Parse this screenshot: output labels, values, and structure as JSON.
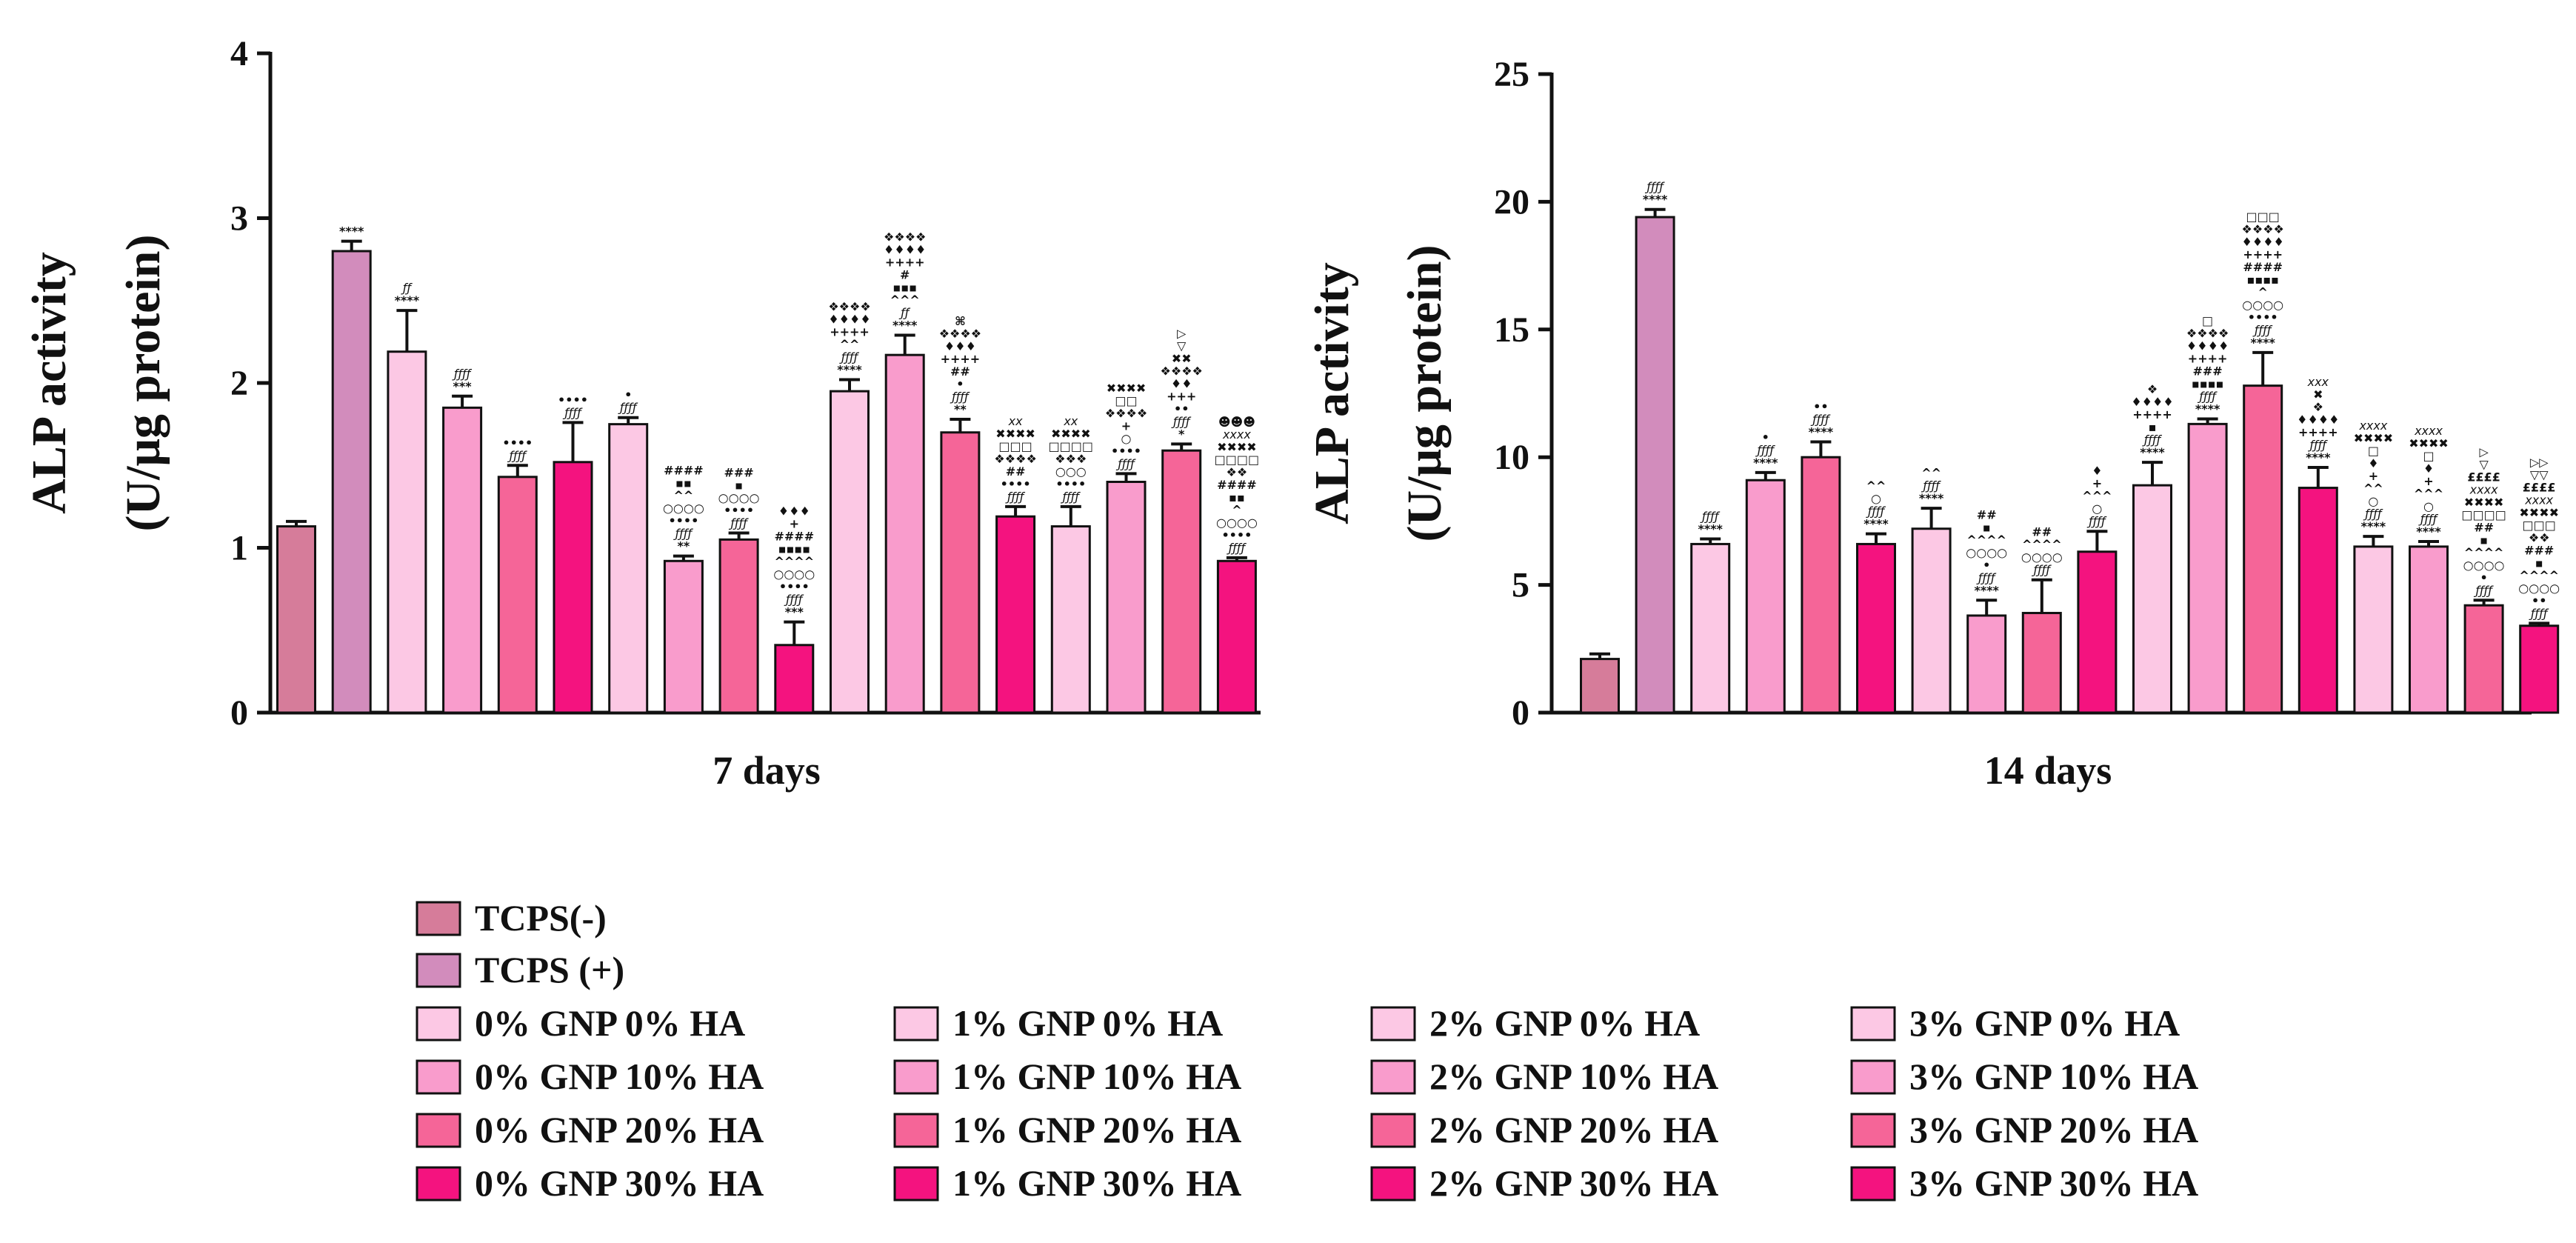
{
  "colors": {
    "tcps_neg": "#d67c9a",
    "tcps_pos": "#d28cbc",
    "ha0": "#fcc8e4",
    "ha10": "#f99ccc",
    "ha20": "#f56598",
    "ha30": "#f4137f"
  },
  "legend": {
    "entries": [
      {
        "label": "TCPS(-)",
        "color": "#d67c9a"
      },
      {
        "label": "TCPS (+)",
        "color": "#d28cbc"
      },
      {
        "label": "0% GNP 0% HA",
        "color": "#fcc8e4"
      },
      {
        "label": "0% GNP 10% HA",
        "color": "#f99ccc"
      },
      {
        "label": "0% GNP 20% HA",
        "color": "#f56598"
      },
      {
        "label": "0% GNP 30% HA",
        "color": "#f4137f"
      },
      {
        "label": "1% GNP 0% HA",
        "color": "#fcc8e4"
      },
      {
        "label": "1% GNP 10% HA",
        "color": "#f99ccc"
      },
      {
        "label": "1% GNP 20% HA",
        "color": "#f56598"
      },
      {
        "label": "1% GNP 30% HA",
        "color": "#f4137f"
      },
      {
        "label": "2% GNP 0% HA",
        "color": "#fcc8e4"
      },
      {
        "label": "2% GNP 10% HA",
        "color": "#f99ccc"
      },
      {
        "label": "2% GNP 20% HA",
        "color": "#f56598"
      },
      {
        "label": "2% GNP 30% HA",
        "color": "#f4137f"
      },
      {
        "label": "3% GNP 0% HA",
        "color": "#fcc8e4"
      },
      {
        "label": "3% GNP 10% HA",
        "color": "#f99ccc"
      },
      {
        "label": "3% GNP 20% HA",
        "color": "#f56598"
      },
      {
        "label": "3% GNP 30% HA",
        "color": "#f4137f"
      }
    ]
  },
  "chart_data": [
    {
      "type": "bar",
      "title": "",
      "xlabel": "7 days",
      "ylabel_line1": "ALP activity",
      "ylabel_line2": "(U/μg protein)",
      "ylim": [
        0,
        4
      ],
      "yticks": [
        "0",
        "1",
        "2",
        "3",
        "4"
      ],
      "categories": [
        "TCPS(-)",
        "TCPS (+)",
        "0% GNP 0% HA",
        "0% GNP 10% HA",
        "0% GNP 20% HA",
        "0% GNP 30% HA",
        "1% GNP 0% HA",
        "1% GNP 10% HA",
        "1% GNP 20% HA",
        "1% GNP 30% HA",
        "2% GNP 0% HA",
        "2% GNP 10% HA",
        "2% GNP 20% HA",
        "2% GNP 30% HA",
        "3% GNP 0% HA",
        "3% GNP 10% HA",
        "3% GNP 20% HA",
        "3% GNP 30% HA"
      ],
      "values": [
        1.13,
        2.8,
        2.19,
        1.85,
        1.43,
        1.52,
        1.75,
        0.92,
        1.05,
        0.41,
        1.95,
        2.17,
        1.7,
        1.19,
        1.13,
        1.4,
        1.59,
        0.92
      ],
      "errors": [
        0.03,
        0.06,
        0.25,
        0.07,
        0.07,
        0.24,
        0.04,
        0.03,
        0.04,
        0.14,
        0.07,
        0.12,
        0.08,
        0.06,
        0.12,
        0.05,
        0.04,
        0.02
      ],
      "colors": [
        "#d67c9a",
        "#d28cbc",
        "#fcc8e4",
        "#f99ccc",
        "#f56598",
        "#f4137f",
        "#fcc8e4",
        "#f99ccc",
        "#f56598",
        "#f4137f",
        "#fcc8e4",
        "#f99ccc",
        "#f56598",
        "#f4137f",
        "#fcc8e4",
        "#f99ccc",
        "#f56598",
        "#f4137f"
      ],
      "annotations": [
        [],
        [
          "****"
        ],
        [
          "ƒƒ",
          "****"
        ],
        [
          "ƒƒƒƒ",
          "***"
        ],
        [
          "••••",
          "ƒƒƒƒ"
        ],
        [
          "••••",
          "ƒƒƒƒ"
        ],
        [
          "•",
          "ƒƒƒƒ"
        ],
        [
          "####",
          "▪▪",
          "^^",
          "○○○○",
          "••••",
          "ƒƒƒƒ",
          "**"
        ],
        [
          "###",
          "▪",
          "○○○○",
          "••••",
          "ƒƒƒƒ"
        ],
        [
          "♦♦♦",
          "+",
          "####",
          "▪▪▪▪",
          "^^^^",
          "○○○○",
          "••••",
          "ƒƒƒƒ",
          "***"
        ],
        [
          "❖❖❖❖",
          "♦♦♦♦",
          "++++",
          "^^",
          "ƒƒƒƒ",
          "****"
        ],
        [
          "❖❖❖❖",
          "♦♦♦♦",
          "++++",
          "#",
          "▪▪▪",
          "^^^",
          "ƒƒ",
          "****"
        ],
        [
          "⌘",
          "❖❖❖❖",
          "♦♦♦",
          "++++",
          "##",
          "•",
          "ƒƒƒƒ",
          "**"
        ],
        [
          "xx",
          "✖✖✖✖",
          "□□□",
          "❖❖❖❖",
          "##",
          "••••",
          "ƒƒƒƒ"
        ],
        [
          "xx",
          "✖✖✖✖",
          "□□□□",
          "❖❖❖",
          "○○○",
          "••••",
          "ƒƒƒƒ"
        ],
        [
          "✖✖✖✖",
          "□□",
          "❖❖❖❖",
          "+",
          "○",
          "••••",
          "ƒƒƒƒ"
        ],
        [
          "▷",
          "▽",
          "✖✖",
          "❖❖❖❖",
          "♦♦",
          "+++",
          "••",
          "ƒƒƒƒ",
          "*"
        ],
        [
          "☻☻☻",
          "xxxx",
          "✖✖✖✖",
          "□□□□",
          "❖❖",
          "####",
          "▪▪",
          "^",
          "○○○○",
          "••••",
          "ƒƒƒƒ"
        ]
      ]
    },
    {
      "type": "bar",
      "title": "",
      "xlabel": "14 days",
      "ylabel_line1": "ALP activity",
      "ylabel_line2": "(U/μg protein)",
      "ylim": [
        0,
        25
      ],
      "yticks": [
        "0",
        "5",
        "10",
        "15",
        "20",
        "25"
      ],
      "categories": [
        "TCPS(-)",
        "TCPS (+)",
        "0% GNP 0% HA",
        "0% GNP 10% HA",
        "0% GNP 20% HA",
        "0% GNP 30% HA",
        "1% GNP 0% HA",
        "1% GNP 10% HA",
        "1% GNP 20% HA",
        "1% GNP 30% HA",
        "2% GNP 0% HA",
        "2% GNP 10% HA",
        "2% GNP 20% HA",
        "2% GNP 30% HA",
        "3% GNP 0% HA",
        "3% GNP 10% HA",
        "3% GNP 20% HA",
        "3% GNP 30% HA"
      ],
      "values": [
        2.1,
        19.4,
        6.6,
        9.1,
        10.0,
        6.6,
        7.2,
        3.8,
        3.9,
        6.3,
        8.9,
        11.3,
        12.8,
        8.8,
        6.5,
        6.5,
        4.2,
        3.4
      ],
      "errors": [
        0.2,
        0.3,
        0.2,
        0.3,
        0.6,
        0.4,
        0.8,
        0.6,
        1.3,
        0.8,
        0.9,
        0.2,
        1.3,
        0.8,
        0.4,
        0.2,
        0.2,
        0.1
      ],
      "colors": [
        "#d67c9a",
        "#d28cbc",
        "#fcc8e4",
        "#f99ccc",
        "#f56598",
        "#f4137f",
        "#fcc8e4",
        "#f99ccc",
        "#f56598",
        "#f4137f",
        "#fcc8e4",
        "#f99ccc",
        "#f56598",
        "#f4137f",
        "#fcc8e4",
        "#f99ccc",
        "#f56598",
        "#f4137f"
      ],
      "annotations": [
        [],
        [
          "ƒƒƒƒ",
          "****"
        ],
        [
          "ƒƒƒƒ",
          "****"
        ],
        [
          "•",
          "ƒƒƒƒ",
          "****"
        ],
        [
          "••",
          "ƒƒƒƒ",
          "****"
        ],
        [
          "^^",
          "○",
          "ƒƒƒƒ",
          "****"
        ],
        [
          "^^",
          "ƒƒƒƒ",
          "****"
        ],
        [
          "##",
          "▪",
          "^^^^",
          "○○○○",
          "•",
          "ƒƒƒƒ",
          "****"
        ],
        [
          "##",
          "^^^^",
          "○○○○",
          "ƒƒƒƒ"
        ],
        [
          "♦",
          "+",
          "^^^",
          "○",
          "ƒƒƒƒ"
        ],
        [
          "❖",
          "♦♦♦♦",
          "++++",
          "▪",
          "ƒƒƒƒ",
          "****"
        ],
        [
          "□",
          "❖❖❖❖",
          "♦♦♦♦",
          "++++",
          "###",
          "▪▪▪▪",
          "ƒƒƒƒ",
          "****"
        ],
        [
          "□□□",
          "❖❖❖❖",
          "♦♦♦♦",
          "++++",
          "####",
          "▪▪▪▪",
          "^",
          "○○○○",
          "••••",
          "ƒƒƒƒ",
          "****"
        ],
        [
          "xxx",
          "✖",
          "❖",
          "♦♦♦♦",
          "++++",
          "ƒƒƒƒ",
          "****"
        ],
        [
          "xxxx",
          "✖✖✖✖",
          "□",
          "♦",
          "+",
          "^^",
          "○",
          "ƒƒƒƒ",
          "****"
        ],
        [
          "xxxx",
          "✖✖✖✖",
          "□",
          "♦",
          "+",
          "^^^",
          "○",
          "ƒƒƒƒ",
          "****"
        ],
        [
          "▷",
          "▽",
          "££££",
          "xxxx",
          "✖✖✖✖",
          "□□□□",
          "##",
          "▪",
          "^^^^",
          "○○○○",
          "•",
          "ƒƒƒƒ"
        ],
        [
          "▷▷",
          "▽▽",
          "££££",
          "xxxx",
          "✖✖✖✖",
          "□□□",
          "❖❖",
          "###",
          "▪",
          "^^^^",
          "○○○○",
          "••",
          "ƒƒƒƒ"
        ]
      ]
    }
  ]
}
